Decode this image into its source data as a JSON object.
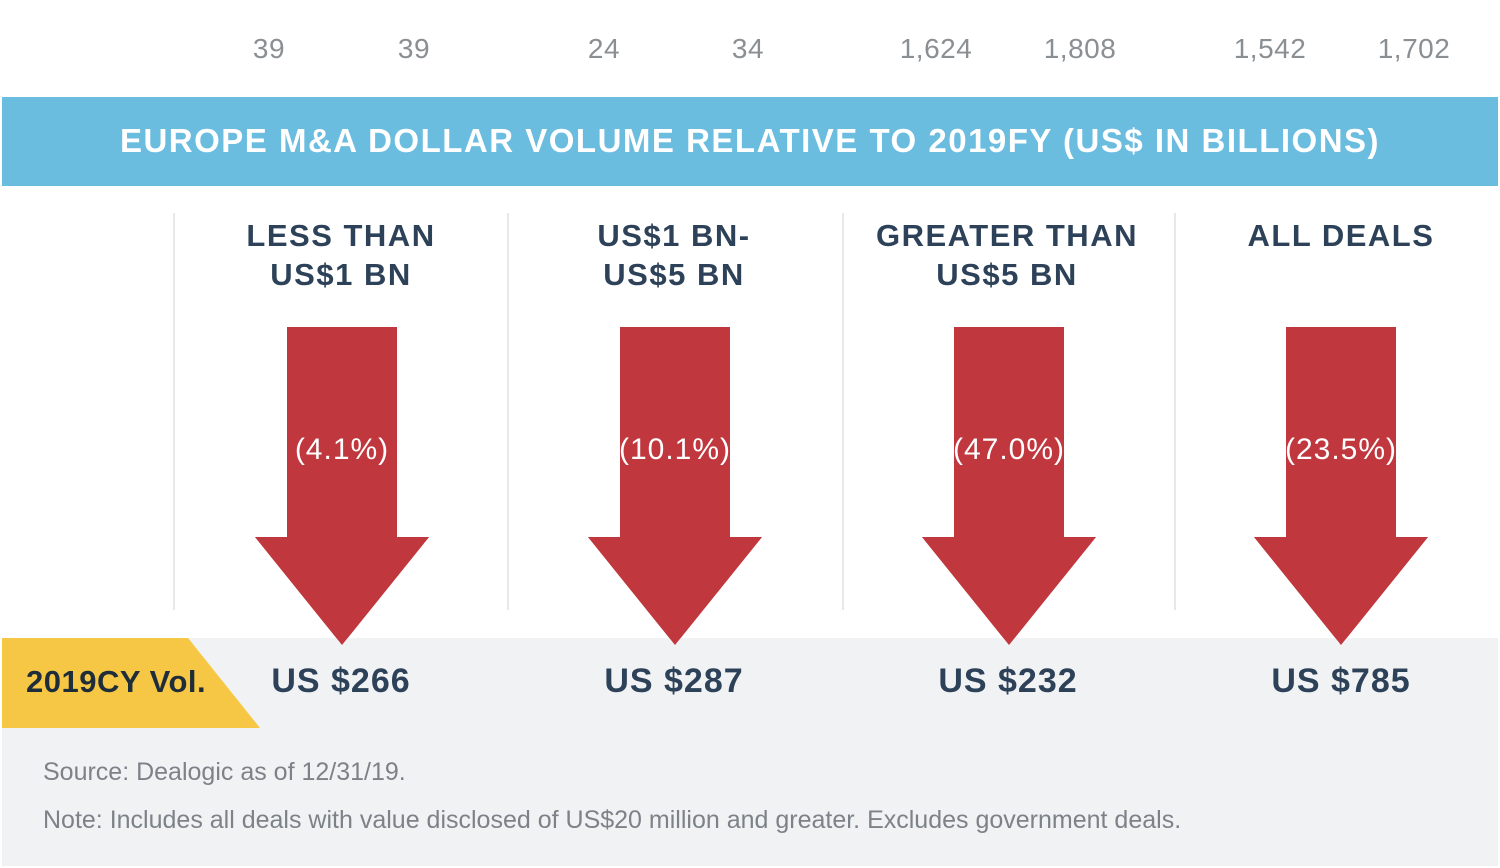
{
  "chart_data": {
    "type": "bar",
    "title": "EUROPE M&A DOLLAR VOLUME RELATIVE TO 2019FY (US$ IN BILLIONS)",
    "top_values": [
      "39",
      "39",
      "24",
      "34",
      "1,624",
      "1,808",
      "1,542",
      "1,702"
    ],
    "categories": [
      {
        "label_line1": "LESS THAN",
        "label_line2": "US$1 BN",
        "change": "(4.1%)",
        "change_value": -4.1,
        "volume": "US $266",
        "volume_value": 266
      },
      {
        "label_line1": "US$1 BN-",
        "label_line2": "US$5 BN",
        "change": "(10.1%)",
        "change_value": -10.1,
        "volume": "US $287",
        "volume_value": 287
      },
      {
        "label_line1": "GREATER THAN",
        "label_line2": "US$5 BN",
        "change": "(47.0%)",
        "change_value": -47.0,
        "volume": "US $232",
        "volume_value": 232
      },
      {
        "label_line1": "ALL DEALS",
        "label_line2": "",
        "change": "(23.5%)",
        "change_value": -23.5,
        "volume": "US $785",
        "volume_value": 785
      }
    ],
    "volume_row_label": "2019CY Vol."
  },
  "footer": {
    "source": "Source: Dealogic as of 12/31/19.",
    "note": "Note: Includes all deals with value disclosed of US$20 million and greater. Excludes government deals."
  },
  "colors": {
    "banner": "#6bbde0",
    "arrow": "#c0373e",
    "tag": "#f6c744",
    "label_text": "#2d4258",
    "row_background": "#f1f2f4"
  }
}
